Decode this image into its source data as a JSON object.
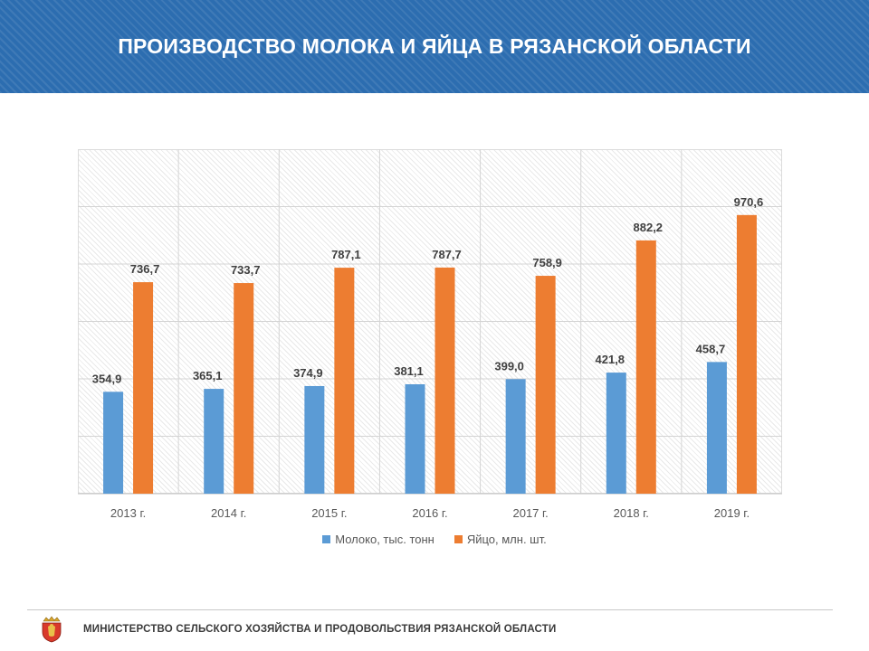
{
  "header": {
    "title": "ПРОИЗВОДСТВО МОЛОКА И ЯЙЦА В РЯЗАНСКОЙ ОБЛАСТИ"
  },
  "colors": {
    "banner": "#2c6db0",
    "milk": "#5b9bd5",
    "eggs": "#ed7d31"
  },
  "chart_data": {
    "type": "bar",
    "categories": [
      "2013 г.",
      "2014 г.",
      "2015 г.",
      "2016 г.",
      "2017 г.",
      "2018 г.",
      "2019 г."
    ],
    "series": [
      {
        "name": "Молоко,  тыс. тонн",
        "values": [
          354.9,
          365.1,
          374.9,
          381.1,
          399.0,
          421.8,
          458.7
        ],
        "labels": [
          "354,9",
          "365,1",
          "374,9",
          "381,1",
          "399,0",
          "421,8",
          "458,7"
        ]
      },
      {
        "name": "Яйцо, млн. шт.",
        "values": [
          736.7,
          733.7,
          787.1,
          787.7,
          758.9,
          882.2,
          970.6
        ],
        "labels": [
          "736,7",
          "733,7",
          "787,1",
          "787,7",
          "758,9",
          "882,2",
          "970,6"
        ]
      }
    ],
    "ylim": [
      0,
      1200
    ],
    "grid": true,
    "legend": "bottom",
    "title": "",
    "xlabel": "",
    "ylabel": ""
  },
  "footer": {
    "text": "МИНИСТЕРСТВО СЕЛЬСКОГО ХОЗЯЙСТВА И ПРОДОВОЛЬСТВИЯ РЯЗАНСКОЙ ОБЛАСТИ",
    "emblem": "ryazan-coat-of-arms"
  }
}
